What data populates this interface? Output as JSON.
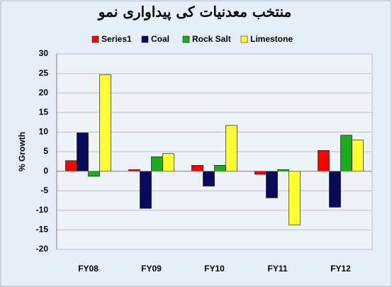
{
  "chart_data": {
    "type": "bar",
    "title": "منتخب معدنیات کی پیداواری نمو",
    "y_label": "% Growth",
    "categories": [
      "FY08",
      "FY09",
      "FY10",
      "FY11",
      "FY12"
    ],
    "series": [
      {
        "name": "Series1",
        "color": "#ff0000",
        "values": [
          2.7,
          0.4,
          1.5,
          -0.8,
          5.3
        ]
      },
      {
        "name": "Coal",
        "color": "#0a0a5c",
        "values": [
          9.8,
          -9.5,
          -3.8,
          -6.8,
          -9.2
        ]
      },
      {
        "name": "Rock Salt",
        "color": "#1faa1f",
        "values": [
          -1.3,
          3.7,
          1.5,
          0.4,
          9.2
        ]
      },
      {
        "name": "Limestone",
        "color": "#ffff33",
        "values": [
          24.7,
          4.5,
          11.7,
          -13.7,
          8.0
        ]
      }
    ],
    "ylim": [
      -20,
      30
    ],
    "yticks": [
      -20,
      -15,
      -10,
      -5,
      0,
      5,
      10,
      15,
      20,
      25,
      30
    ],
    "grid": true,
    "legend": "top"
  }
}
